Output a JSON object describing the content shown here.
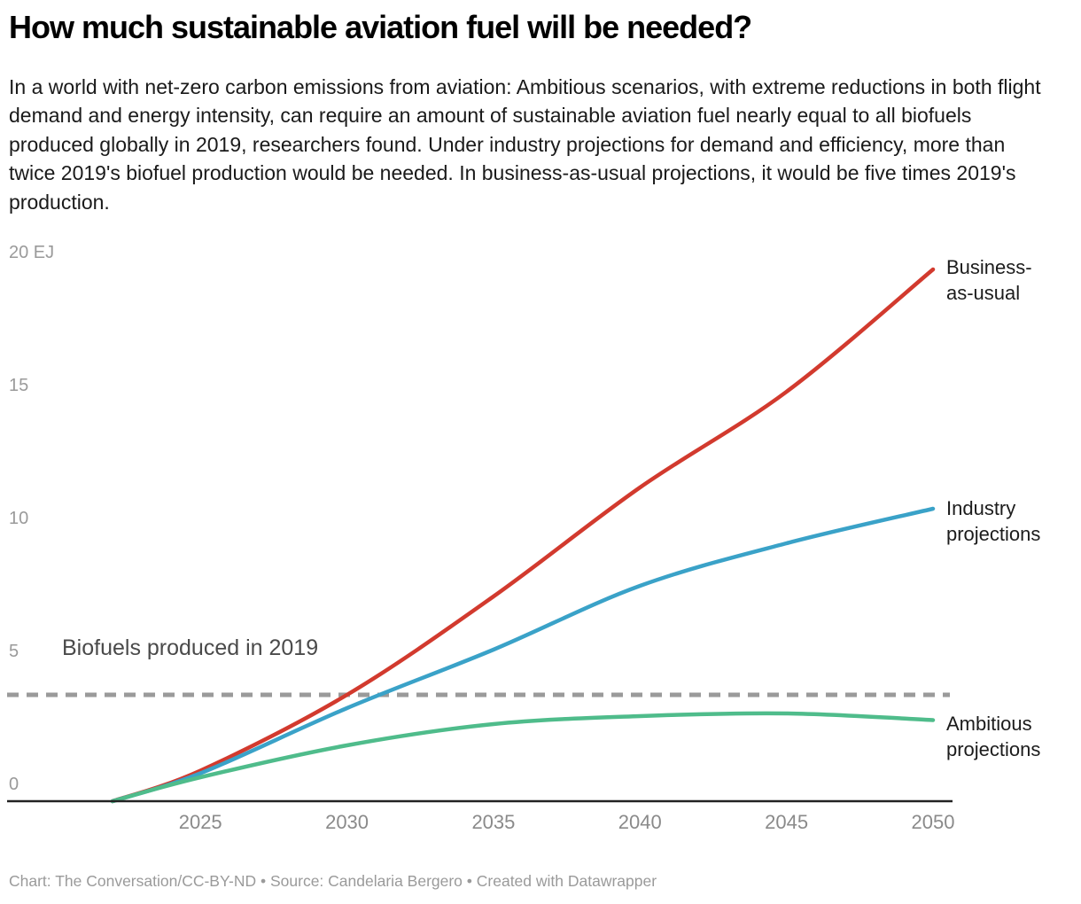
{
  "header": {
    "title": "How much sustainable aviation fuel will be needed?",
    "description": "In a world with net-zero carbon emissions from aviation: Ambitious scenarios, with extreme reductions in both flight demand and energy intensity, can require an amount of sustainable aviation fuel nearly equal to all biofuels produced globally in 2019, researchers found. Under industry projections for demand and efficiency, more than twice 2019's biofuel production would be needed. In business-as-usual projections, it would be five times 2019's production."
  },
  "chart_data": {
    "type": "line",
    "unit": "EJ",
    "x": [
      2022,
      2025,
      2030,
      2035,
      2040,
      2045,
      2050
    ],
    "series": [
      {
        "name": "Business-as-usual",
        "label": "Business-\nas-usual",
        "color": "#d23a2e",
        "values": [
          0,
          1.15,
          4.0,
          7.7,
          11.8,
          15.4,
          20.0
        ]
      },
      {
        "name": "Industry projections",
        "label": "Industry\nprojections",
        "color": "#3aa2c8",
        "values": [
          0,
          1.05,
          3.5,
          5.7,
          8.1,
          9.7,
          11.0
        ]
      },
      {
        "name": "Ambitious projections",
        "label": "Ambitious\nprojections",
        "color": "#4fbc8b",
        "values": [
          0,
          0.9,
          2.1,
          2.9,
          3.2,
          3.3,
          3.05
        ]
      }
    ],
    "reference_line": {
      "value": 4,
      "label": "Biofuels produced in 2019",
      "color": "#9a9a9a",
      "style": "dashed"
    },
    "xlim": [
      2022,
      2050
    ],
    "ylim": [
      0,
      20
    ],
    "x_ticks": [
      "2025",
      "2030",
      "2035",
      "2040",
      "2045",
      "2050"
    ],
    "y_ticks": [
      {
        "value": 0,
        "label": "0"
      },
      {
        "value": 5,
        "label": "5"
      },
      {
        "value": 10,
        "label": "10"
      },
      {
        "value": 15,
        "label": "15"
      },
      {
        "value": 20,
        "label": "20 EJ"
      }
    ],
    "grid": "none",
    "legend_position": "right-of-line-ends",
    "axis_color": "#222222"
  },
  "footer": {
    "text": "Chart: The Conversation/CC-BY-ND • Source: Candelaria Bergero • Created with Datawrapper"
  }
}
